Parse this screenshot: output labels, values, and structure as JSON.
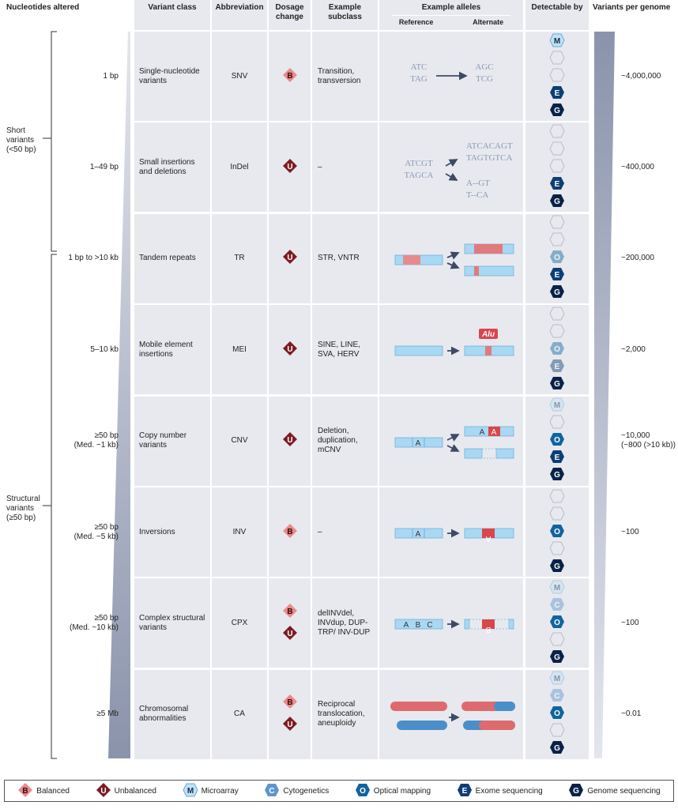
{
  "headers": {
    "nucleotides": "Nucleotides altered",
    "variant_class": "Variant class",
    "abbreviation": "Abbreviation",
    "dosage": "Dosage change",
    "subclass": "Example subclass",
    "alleles": "Example alleles",
    "reference": "Reference",
    "alternate": "Alternate",
    "detectable": "Detectable by",
    "variants": "Variants per genome"
  },
  "groups": {
    "short": "Short\nvariants\n(<50 bp)",
    "structural": "Structural\nvariants\n(≥50 bp)"
  },
  "colors": {
    "cell_bg": "#e8e9ee",
    "balanced": "#e88a8c",
    "unbalanced": "#7b1c22",
    "M": "#bfe2f6",
    "C": "#5e96cf",
    "O": "#11649f",
    "E": "#0d3e74",
    "G": "#0a2248"
  },
  "rows": [
    {
      "size": "1 bp",
      "class": "Single-nucleotide variants",
      "abbr": "SNV",
      "dosage": [
        "B"
      ],
      "subclass": "Transition, transversion",
      "type": "snv",
      "vpg": "~4,000,000",
      "detect": [
        "full",
        "none",
        "none",
        "full",
        "full"
      ],
      "alleles": {
        "ref1": "ATC",
        "ref2": "TAG",
        "alt1": "AGC",
        "alt2": "TCG"
      }
    },
    {
      "size": "1–49 bp",
      "class": "Small insertions and deletions",
      "abbr": "InDel",
      "dosage": [
        "U"
      ],
      "subclass": "–",
      "type": "indel",
      "vpg": "~400,000",
      "detect": [
        "none",
        "none",
        "none",
        "full",
        "full"
      ],
      "alleles": {
        "ref1": "ATCGT",
        "ref2": "TAGCA",
        "alt1": "ATCACAGT",
        "alt2": "TAGTGTCA",
        "alt3": "A--GT",
        "alt4": "T--CA"
      }
    },
    {
      "size": "1 bp to >10 kb",
      "class": "Tandem repeats",
      "abbr": "TR",
      "dosage": [
        "U"
      ],
      "subclass": "STR, VNTR",
      "type": "tr",
      "vpg": "~200,000",
      "detect": [
        "none",
        "none",
        "faded",
        "full",
        "full"
      ],
      "alleles": {}
    },
    {
      "size": "5–10 kb",
      "class": "Mobile element insertions",
      "abbr": "MEI",
      "dosage": [
        "U"
      ],
      "subclass": "SINE, LINE, SVA, HERV",
      "type": "mei",
      "vpg": "~2,000",
      "detect": [
        "none",
        "none",
        "faded",
        "faded",
        "full"
      ],
      "alleles": {
        "label": "Alu"
      }
    },
    {
      "size": "≥50 bp\n(Med. ~1 kb)",
      "class": "Copy number variants",
      "abbr": "CNV",
      "dosage": [
        "U"
      ],
      "subclass": "Deletion, duplication, mCNV",
      "type": "cnv",
      "vpg": "~10,000\n(~800 (>10 kb))",
      "detect": [
        "faded",
        "none",
        "full",
        "full",
        "full"
      ],
      "alleles": {
        "seg": "A"
      }
    },
    {
      "size": "≥50 bp\n(Med. ~5 kb)",
      "class": "Inversions",
      "abbr": "INV",
      "dosage": [
        "B"
      ],
      "subclass": "–",
      "type": "inv",
      "vpg": "~100",
      "detect": [
        "none",
        "none",
        "full",
        "none",
        "full"
      ],
      "alleles": {
        "seg": "A"
      }
    },
    {
      "size": "≥50 bp\n(Med. ~10 kb)",
      "class": "Complex structural variants",
      "abbr": "CPX",
      "dosage": [
        "B",
        "U"
      ],
      "subclass": "delINVdel, INVdup, DUP-TRP/ INV-DUP",
      "type": "cpx",
      "vpg": "~100",
      "detect": [
        "faded",
        "faded",
        "full",
        "none",
        "full"
      ],
      "alleles": {
        "a": "A",
        "b": "B",
        "c": "C"
      }
    },
    {
      "size": "≥5 Mb",
      "class": "Chromosomal abnormalities",
      "abbr": "CA",
      "dosage": [
        "B",
        "U"
      ],
      "subclass": "Reciprocal translocation, aneuploidy",
      "type": "ca",
      "vpg": "~0.01",
      "detect": [
        "faded",
        "faded",
        "full",
        "none",
        "full"
      ],
      "alleles": {}
    }
  ],
  "legend": [
    {
      "key": "B",
      "label": "Balanced",
      "kind": "diamond"
    },
    {
      "key": "U",
      "label": "Unbalanced",
      "kind": "diamond"
    },
    {
      "key": "M",
      "label": "Microarray",
      "kind": "hex"
    },
    {
      "key": "C",
      "label": "Cytogenetics",
      "kind": "hex"
    },
    {
      "key": "O",
      "label": "Optical mapping",
      "kind": "hex"
    },
    {
      "key": "E",
      "label": "Exome sequencing",
      "kind": "hex"
    },
    {
      "key": "G",
      "label": "Genome sequencing",
      "kind": "hex"
    }
  ]
}
